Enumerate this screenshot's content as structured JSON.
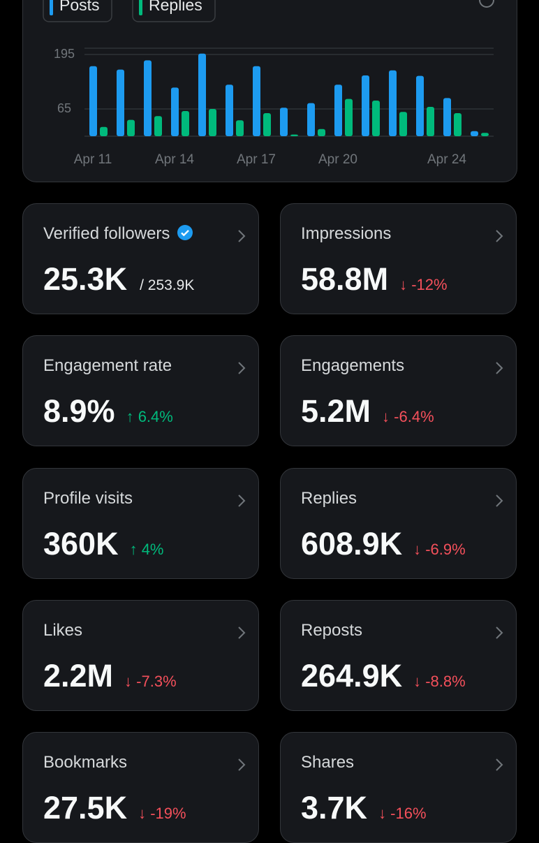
{
  "chart_data": {
    "type": "bar",
    "categories": [
      "Apr 11",
      null,
      null,
      "Apr 14",
      null,
      null,
      "Apr 17",
      null,
      null,
      "Apr 20",
      null,
      null,
      null,
      "Apr 24",
      null
    ],
    "series": [
      {
        "name": "Posts",
        "color": "#1d9bf0",
        "values": [
          167,
          159,
          181,
          116,
          197,
          123,
          167,
          68,
          79,
          123,
          145,
          157,
          144,
          91,
          12
        ]
      },
      {
        "name": "Replies",
        "color": "#00ba7c",
        "values": [
          22,
          39,
          48,
          60,
          65,
          38,
          55,
          4,
          17,
          89,
          85,
          58,
          70,
          55,
          8
        ]
      }
    ],
    "ylim": [
      0,
      210
    ],
    "yticks": [
      65,
      195
    ],
    "grid": true
  },
  "cards": [
    {
      "label": "Verified followers",
      "value": "25.3K",
      "total": "/ 253.9K"
    },
    {
      "label": "Impressions",
      "value": "58.8M",
      "change": "↓ -12%",
      "color": "#f4505b"
    },
    {
      "label": "Engagement rate",
      "value": "8.9%",
      "change": "↑ 6.4%",
      "color": "#00ba7c"
    },
    {
      "label": "Engagements",
      "value": "5.2M",
      "change": "↓ -6.4%",
      "color": "#f4505b"
    },
    {
      "label": "Profile visits",
      "value": "360K",
      "change": "↑ 4%",
      "color": "#00ba7c"
    },
    {
      "label": "Replies",
      "value": "608.9K",
      "change": "↓ -6.9%",
      "color": "#f4505b"
    },
    {
      "label": "Likes",
      "value": "2.2M",
      "change": "↓ -7.3%",
      "color": "#f4505b"
    },
    {
      "label": "Reposts",
      "value": "264.9K",
      "change": "↓ -8.8%",
      "color": "#f4505b"
    },
    {
      "label": "Bookmarks",
      "value": "27.5K",
      "change": "↓ -19%",
      "color": "#f4505b"
    },
    {
      "label": "Shares",
      "value": "3.7K",
      "change": "↓ -16%",
      "color": "#f4505b"
    }
  ]
}
